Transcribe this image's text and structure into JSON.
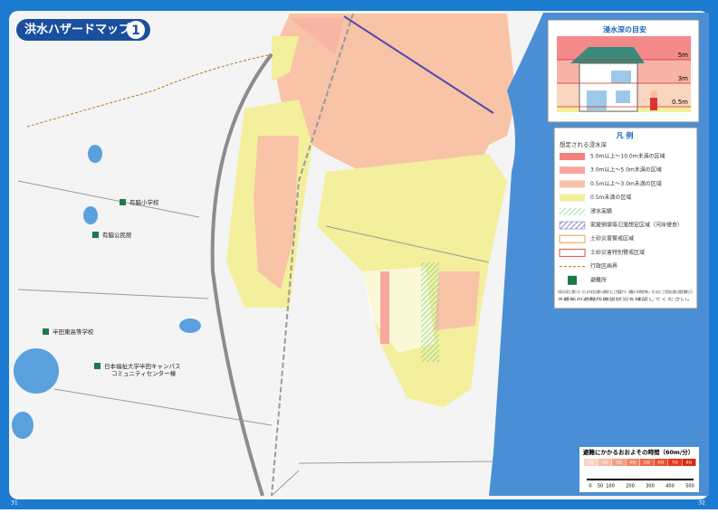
{
  "header": {
    "title": "洪水ハザードマップ",
    "number": "1"
  },
  "depth_guide": {
    "title": "浸水深の目安",
    "levels": [
      "5m",
      "3m",
      "0.5m"
    ]
  },
  "legend": {
    "title": "凡 例",
    "subtitle": "想定される浸水深",
    "items": [
      {
        "label": "5.0m以上～10.0m未満の区域",
        "style": "fill",
        "color": "#f4827f"
      },
      {
        "label": "3.0m以上～5.0m未満の区域",
        "style": "fill",
        "color": "#f7a7a0"
      },
      {
        "label": "0.5m以上～3.0m未満の区域",
        "style": "fill",
        "color": "#f8c3a6"
      },
      {
        "label": "0.5m未満の区域",
        "style": "fill",
        "color": "#f3ef9c"
      },
      {
        "label": "浸水実績",
        "style": "hatch",
        "color": "#7fcf9a"
      },
      {
        "label": "家屋倒壊等氾濫想定区域（河岸侵食）",
        "style": "hatch",
        "color": "#6a62b0"
      },
      {
        "label": "土砂災害警戒区域",
        "style": "outline",
        "color": "#f0a040"
      },
      {
        "label": "土砂災害特別警戒区域",
        "style": "outline",
        "color": "#e84b3a"
      },
      {
        "label": "行政区画界",
        "style": "line",
        "color": "#b8741c"
      },
      {
        "label": "避難所",
        "style": "icon",
        "color": "#1c7a4a"
      }
    ]
  },
  "notes": [
    "※浸水の深さに関わらず、ひとまず安全な場所へ避難することが重要です。（避難までの時間が無い、外にあることが危険な場合は垂直避難も可）",
    "※最新の避難所開設状況を確認してください。"
  ],
  "places": [
    "有脇小学校",
    "有脇公民館",
    "半田東高等学校",
    "日本福祉大学半田キャンパス",
    "コミュニティセンター棟"
  ],
  "time_bar": {
    "title": "避難にかかるおおよその時間（60m/分）",
    "segments": [
      "1分",
      "2分",
      "3分",
      "4分",
      "5分",
      "6分",
      "7分",
      "8分"
    ],
    "scale": [
      "0",
      "50",
      "100",
      "200",
      "300",
      "400",
      "500"
    ]
  },
  "pages": [
    "31",
    "32"
  ]
}
